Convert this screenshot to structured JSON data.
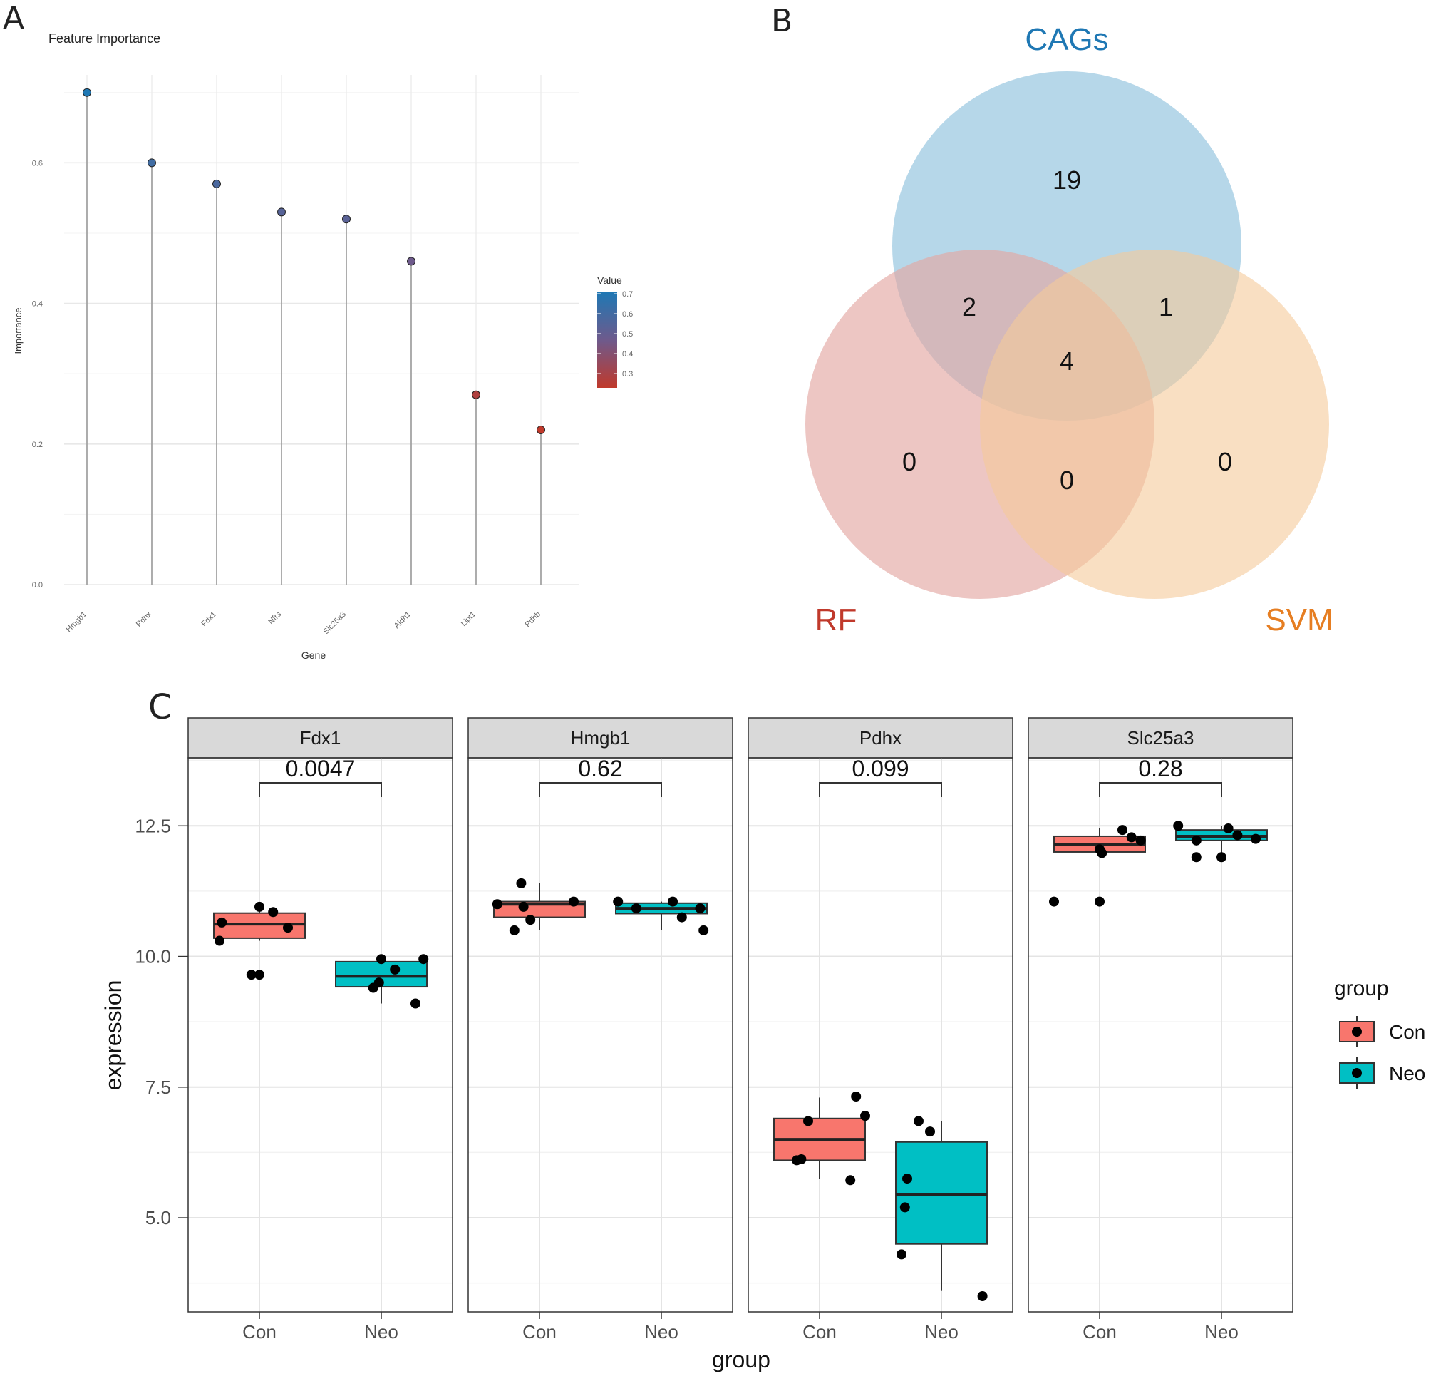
{
  "panel_labels": {
    "a": "A",
    "b": "B",
    "c": "C"
  },
  "colors": {
    "con": "#F8766D",
    "neo": "#00BFC4",
    "cags": "#9ECAE1",
    "rf": "#E4A8A3",
    "svm": "#F5C99A",
    "cags_text": "#1F78B4",
    "rf_text": "#C0392B",
    "svm_text": "#E67E22"
  },
  "chart_data": [
    {
      "id": "A",
      "type": "lollipop",
      "title": "Feature Importance",
      "xlabel": "Gene",
      "ylabel": "Importance",
      "categories": [
        "Hmgb1",
        "Pdhx",
        "Fdx1",
        "Nfrs",
        "Slc25a3",
        "Aldh1",
        "Lipt1",
        "Pdhb"
      ],
      "values": [
        0.7,
        0.6,
        0.57,
        0.53,
        0.52,
        0.46,
        0.27,
        0.22
      ],
      "ylim": [
        0,
        0.72
      ],
      "yticks": [
        0.0,
        0.2,
        0.4,
        0.6
      ],
      "ytick_labels": [
        "0.0",
        "0.2",
        "0.4",
        "0.6"
      ],
      "legend": {
        "title": "Value",
        "ticks": [
          "0.7",
          "0.6",
          "0.5",
          "0.4",
          "0.3"
        ],
        "low_color": "#C0392B",
        "mid_color": "#6E5A8C",
        "high_color": "#1F78B4",
        "range": [
          0.22,
          0.7
        ]
      }
    },
    {
      "id": "B",
      "type": "venn",
      "sets": [
        "CAGs",
        "RF",
        "SVM"
      ],
      "regions": {
        "cags_only": "19",
        "cags_rf": "2",
        "cags_svm": "1",
        "all": "4",
        "rf_only": "0",
        "rf_svm": "0",
        "svm_only": "0"
      }
    },
    {
      "id": "C",
      "type": "boxplot",
      "xlabel": "group",
      "ylabel": "expression",
      "ylim": [
        3.2,
        13.8
      ],
      "yticks": [
        5.0,
        7.5,
        10.0,
        12.5
      ],
      "ytick_labels": [
        "5.0",
        "7.5",
        "10.0",
        "12.5"
      ],
      "groups": [
        "Con",
        "Neo"
      ],
      "legend": {
        "title": "group",
        "items": [
          "Con",
          "Neo"
        ]
      },
      "facets": [
        {
          "name": "Fdx1",
          "pvalue": "0.0047",
          "boxes": [
            {
              "group": "Con",
              "q1": 10.35,
              "median": 10.62,
              "q3": 10.83,
              "whisker_low": 10.3,
              "whisker_high": 10.95,
              "points": [
                [
                  -0.35,
                  10.3
                ],
                [
                  -0.33,
                  10.65
                ],
                [
                  -0.07,
                  9.65
                ],
                [
                  0.0,
                  9.65
                ],
                [
                  0.0,
                  10.95
                ],
                [
                  0.12,
                  10.85
                ],
                [
                  0.25,
                  10.55
                ]
              ]
            },
            {
              "group": "Neo",
              "q1": 9.42,
              "median": 9.62,
              "q3": 9.9,
              "whisker_low": 9.1,
              "whisker_high": 9.95,
              "points": [
                [
                  -0.07,
                  9.4
                ],
                [
                  -0.02,
                  9.5
                ],
                [
                  0.0,
                  9.95
                ],
                [
                  0.12,
                  9.75
                ],
                [
                  0.3,
                  9.1
                ],
                [
                  0.37,
                  9.95
                ]
              ]
            }
          ]
        },
        {
          "name": "Hmgb1",
          "pvalue": "0.62",
          "boxes": [
            {
              "group": "Con",
              "q1": 10.75,
              "median": 11.0,
              "q3": 11.05,
              "whisker_low": 10.5,
              "whisker_high": 11.4,
              "points": [
                [
                  -0.37,
                  11.0
                ],
                [
                  -0.22,
                  10.5
                ],
                [
                  -0.16,
                  11.4
                ],
                [
                  -0.14,
                  10.95
                ],
                [
                  -0.08,
                  10.7
                ],
                [
                  0.3,
                  11.05
                ]
              ]
            },
            {
              "group": "Neo",
              "q1": 10.82,
              "median": 10.92,
              "q3": 11.02,
              "whisker_low": 10.5,
              "whisker_high": 11.05,
              "points": [
                [
                  -0.38,
                  11.05
                ],
                [
                  -0.22,
                  10.92
                ],
                [
                  0.1,
                  11.05
                ],
                [
                  0.18,
                  10.75
                ],
                [
                  0.34,
                  10.92
                ],
                [
                  0.37,
                  10.5
                ]
              ]
            }
          ]
        },
        {
          "name": "Pdhx",
          "pvalue": "0.099",
          "boxes": [
            {
              "group": "Con",
              "q1": 6.1,
              "median": 6.5,
              "q3": 6.9,
              "whisker_low": 5.75,
              "whisker_high": 7.3,
              "points": [
                [
                  -0.2,
                  6.1
                ],
                [
                  -0.16,
                  6.12
                ],
                [
                  -0.1,
                  6.85
                ],
                [
                  0.27,
                  5.72
                ],
                [
                  0.32,
                  7.32
                ],
                [
                  0.4,
                  6.95
                ]
              ]
            },
            {
              "group": "Neo",
              "q1": 4.5,
              "median": 5.45,
              "q3": 6.45,
              "whisker_low": 3.6,
              "whisker_high": 6.85,
              "points": [
                [
                  -0.35,
                  4.3
                ],
                [
                  -0.32,
                  5.2
                ],
                [
                  -0.3,
                  5.75
                ],
                [
                  -0.2,
                  6.85
                ],
                [
                  -0.1,
                  6.65
                ],
                [
                  0.36,
                  3.5
                ]
              ]
            }
          ]
        },
        {
          "name": "Slc25a3",
          "pvalue": "0.28",
          "boxes": [
            {
              "group": "Con",
              "q1": 12.0,
              "median": 12.15,
              "q3": 12.3,
              "whisker_low": 11.9,
              "whisker_high": 12.45,
              "points": [
                [
                  -0.4,
                  11.05
                ],
                [
                  0.0,
                  11.05
                ],
                [
                  0.0,
                  12.05
                ],
                [
                  0.02,
                  11.98
                ],
                [
                  0.2,
                  12.42
                ],
                [
                  0.28,
                  12.28
                ],
                [
                  0.36,
                  12.22
                ]
              ]
            },
            {
              "group": "Neo",
              "q1": 12.22,
              "median": 12.3,
              "q3": 12.42,
              "whisker_low": 11.9,
              "whisker_high": 12.5,
              "points": [
                [
                  -0.38,
                  12.5
                ],
                [
                  -0.22,
                  11.9
                ],
                [
                  -0.22,
                  12.22
                ],
                [
                  0.0,
                  11.9
                ],
                [
                  0.06,
                  12.45
                ],
                [
                  0.14,
                  12.32
                ],
                [
                  0.3,
                  12.25
                ]
              ]
            }
          ]
        }
      ]
    }
  ]
}
